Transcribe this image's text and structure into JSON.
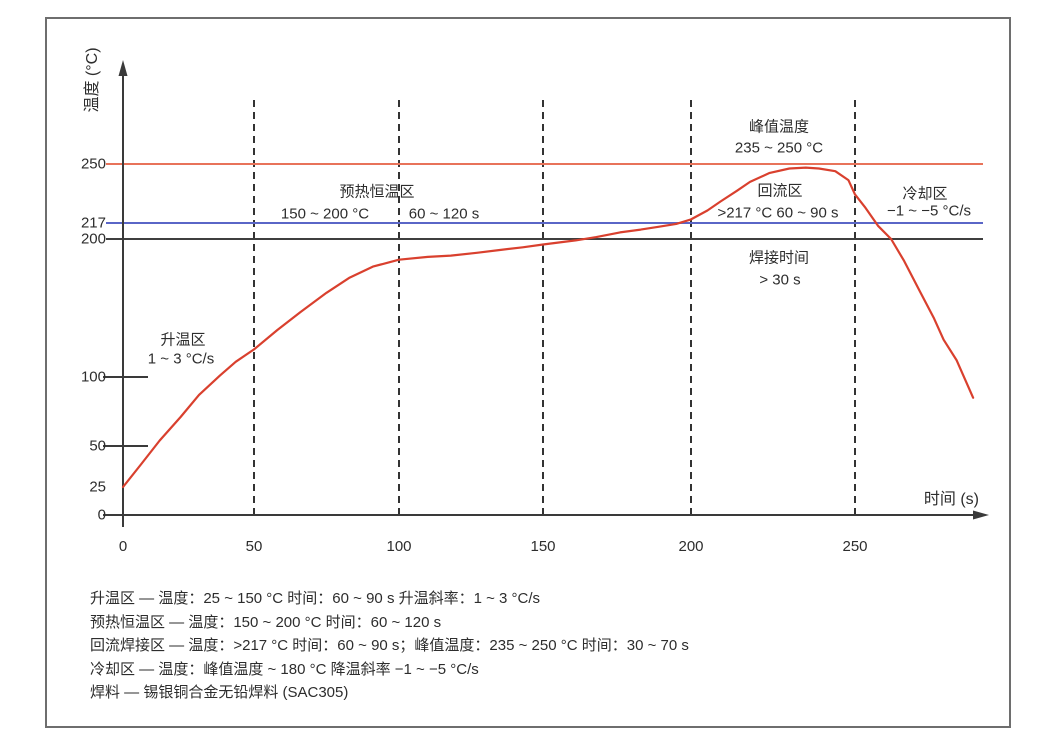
{
  "figure": {
    "y_axis_title": "温度 (°C)",
    "x_axis_title": "时间 (s)",
    "y_tick_labels": [
      "250",
      "217",
      "200",
      "100",
      "50",
      "25",
      "0"
    ],
    "x_tick_labels": [
      "0",
      "50",
      "100",
      "150",
      "200",
      "250"
    ]
  },
  "annotations": {
    "ramp_zone_name": "升温区",
    "ramp_zone_rate": "1 ~ 3 °C/s",
    "soak_zone_name": "预热恒温区",
    "soak_zone_temp": "150 ~ 200 °C",
    "soak_zone_time": "60 ~ 120 s",
    "peak_temp_title": "峰值温度",
    "peak_temp_range": "235 ~ 250 °C",
    "reflow_zone_name": "回流区",
    "reflow_zone_spec": ">217 °C  60 ~ 90 s",
    "cooling_zone_name": "冷却区",
    "cooling_zone_rate": "−1 ~ −5 °C/s",
    "soldering_time_title": "焊接时间",
    "soldering_time_value": "> 30 s"
  },
  "legend": {
    "lines": [
      "升温区 — 温度：25 ~ 150 °C 时间：60 ~ 90 s 升温斜率：1 ~ 3 °C/s",
      "预热恒温区 — 温度：150 ~ 200 °C 时间：60 ~ 120 s",
      "回流焊接区 — 温度：>217 °C 时间：60 ~ 90 s；峰值温度：235 ~ 250 °C 时间：30 ~ 70 s",
      "冷却区 — 温度：峰值温度 ~ 180 °C 降温斜率 −1 ~ −5 °C/s",
      "焊料 — 锡银铜合金无铅焊料 (SAC305)"
    ]
  },
  "colors": {
    "curve": "#d9402e",
    "line_250": "#e8735a",
    "line_217": "#5a66c7",
    "line_200": "#3f3f3f",
    "axis": "#3a3a3a",
    "dashed": "#333333",
    "text": "#2d2d2d",
    "border": "#6e6e6e"
  },
  "chart_data": {
    "type": "line",
    "xlabel": "时间 (s)",
    "ylabel": "温度 (°C)",
    "xlim": [
      0,
      290
    ],
    "ylim": [
      0,
      270
    ],
    "x_ticks": [
      0,
      50,
      100,
      150,
      200,
      250
    ],
    "y_ticks": [
      0,
      25,
      50,
      100,
      200,
      217,
      250
    ],
    "y_minor_tick_marks": [
      50,
      100
    ],
    "grid": "vertical dashed lines at each x tick (50-250), no horizontal grid",
    "legend_position": "none",
    "reference_lines": [
      {
        "y": 250,
        "color_key": "line_250",
        "label": "250"
      },
      {
        "y": 217,
        "color_key": "line_217",
        "label": "217"
      },
      {
        "y": 200,
        "color_key": "line_200",
        "label": "200"
      }
    ],
    "series": [
      {
        "name": "temperature_profile",
        "color_key": "curve",
        "points": [
          [
            0,
            25
          ],
          [
            7,
            39
          ],
          [
            14,
            54
          ],
          [
            22,
            71
          ],
          [
            29,
            87
          ],
          [
            37,
            101
          ],
          [
            43,
            111
          ],
          [
            50,
            120
          ],
          [
            58,
            134
          ],
          [
            66,
            147
          ],
          [
            75,
            161
          ],
          [
            83,
            172
          ],
          [
            91,
            180
          ],
          [
            100,
            185
          ],
          [
            110,
            187
          ],
          [
            118,
            188
          ],
          [
            127,
            190
          ],
          [
            135,
            192
          ],
          [
            143,
            194
          ],
          [
            150,
            196
          ],
          [
            161,
            199
          ],
          [
            168,
            202
          ],
          [
            176,
            207
          ],
          [
            183,
            210
          ],
          [
            189,
            213
          ],
          [
            195,
            216
          ],
          [
            200,
            219
          ],
          [
            205,
            224
          ],
          [
            209,
            229
          ],
          [
            214,
            235
          ],
          [
            218,
            240
          ],
          [
            224,
            245
          ],
          [
            230,
            247.5
          ],
          [
            235,
            248
          ],
          [
            239,
            247.5
          ],
          [
            244,
            246
          ],
          [
            248,
            241
          ],
          [
            250,
            233
          ],
          [
            253,
            226
          ],
          [
            257,
            214
          ],
          [
            261,
            200
          ],
          [
            265,
            184
          ],
          [
            270,
            161
          ],
          [
            274,
            143
          ],
          [
            277,
            127
          ],
          [
            281,
            112
          ],
          [
            286,
            85
          ]
        ]
      }
    ],
    "zones": [
      {
        "name": "升温区",
        "temp": "25 ~ 150 °C",
        "time": "60 ~ 90 s",
        "ramp": "1 ~ 3 °C/s"
      },
      {
        "name": "预热恒温区",
        "temp": "150 ~ 200 °C",
        "time": "60 ~ 120 s"
      },
      {
        "name": "回流焊接区",
        "temp": ">217 °C",
        "time": "60 ~ 90 s",
        "peak_temp": "235 ~ 250 °C",
        "peak_time": "30 ~ 70 s",
        "soldering_time": "> 30 s"
      },
      {
        "name": "冷却区",
        "temp": "峰值温度 ~ 180 °C",
        "ramp": "−1 ~ −5 °C/s"
      }
    ],
    "solder": "锡银铜合金无铅焊料 (SAC305)"
  }
}
